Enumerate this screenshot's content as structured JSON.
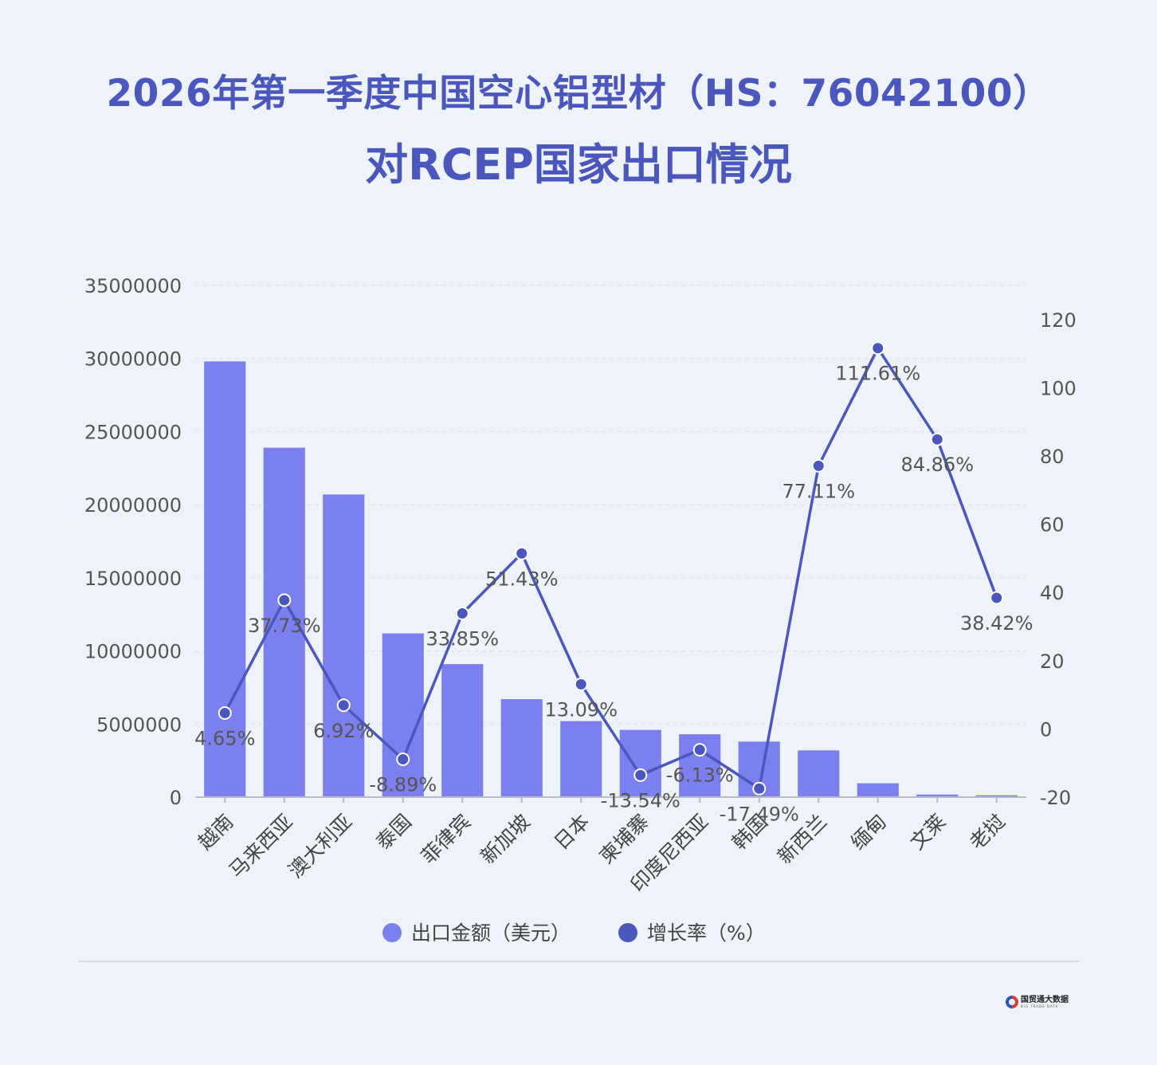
{
  "title_line1": "2026年第一季度中国空心铝型材（HS：76042100）",
  "title_line2": "对RCEP国家出口情况",
  "logo": {
    "cn": "国贸通大数据",
    "en": "BIG TRADE DATA"
  },
  "colors": {
    "bar": "#7b80ee",
    "line": "#4b57bd",
    "title": "#4b57bd",
    "background": "#eef3fa"
  },
  "chart_data": {
    "type": "bar+line",
    "categories": [
      "越南",
      "马来西亚",
      "澳大利亚",
      "泰国",
      "菲律宾",
      "新加坡",
      "日本",
      "柬埔寨",
      "印度尼西亚",
      "韩国",
      "新西兰",
      "缅甸",
      "文莱",
      "老挝"
    ],
    "series": [
      {
        "name": "出口金额（美元）",
        "type": "bar",
        "axis": "left",
        "values": [
          29800000,
          23900000,
          20700000,
          11200000,
          9100000,
          6700000,
          5200000,
          4600000,
          4300000,
          3800000,
          3200000,
          950000,
          180000,
          130000
        ]
      },
      {
        "name": "增长率（%）",
        "type": "line",
        "axis": "right",
        "values": [
          4.65,
          37.73,
          6.92,
          -8.89,
          33.85,
          51.43,
          13.09,
          -13.54,
          -6.13,
          -17.49,
          77.11,
          111.61,
          84.86,
          38.42
        ],
        "labels": [
          "4.65%",
          "37.73%",
          "6.92%",
          "-8.89%",
          "33.85%",
          "51.43%",
          "13.09%",
          "-13.54%",
          "-6.13%",
          "-17.49%",
          "77.11%",
          "111.61%",
          "84.86%",
          "38.42%"
        ]
      }
    ],
    "y_left": {
      "ylim": [
        0,
        35000000
      ],
      "ticks": [
        "0",
        "5000000",
        "10000000",
        "15000000",
        "20000000",
        "25000000",
        "30000000",
        "35000000"
      ]
    },
    "y_right": {
      "ylim": [
        -20,
        130
      ],
      "ticks": [
        "-20",
        "0",
        "20",
        "40",
        "60",
        "80",
        "100",
        "120"
      ]
    },
    "grid": true,
    "legend_position": "bottom-center"
  }
}
